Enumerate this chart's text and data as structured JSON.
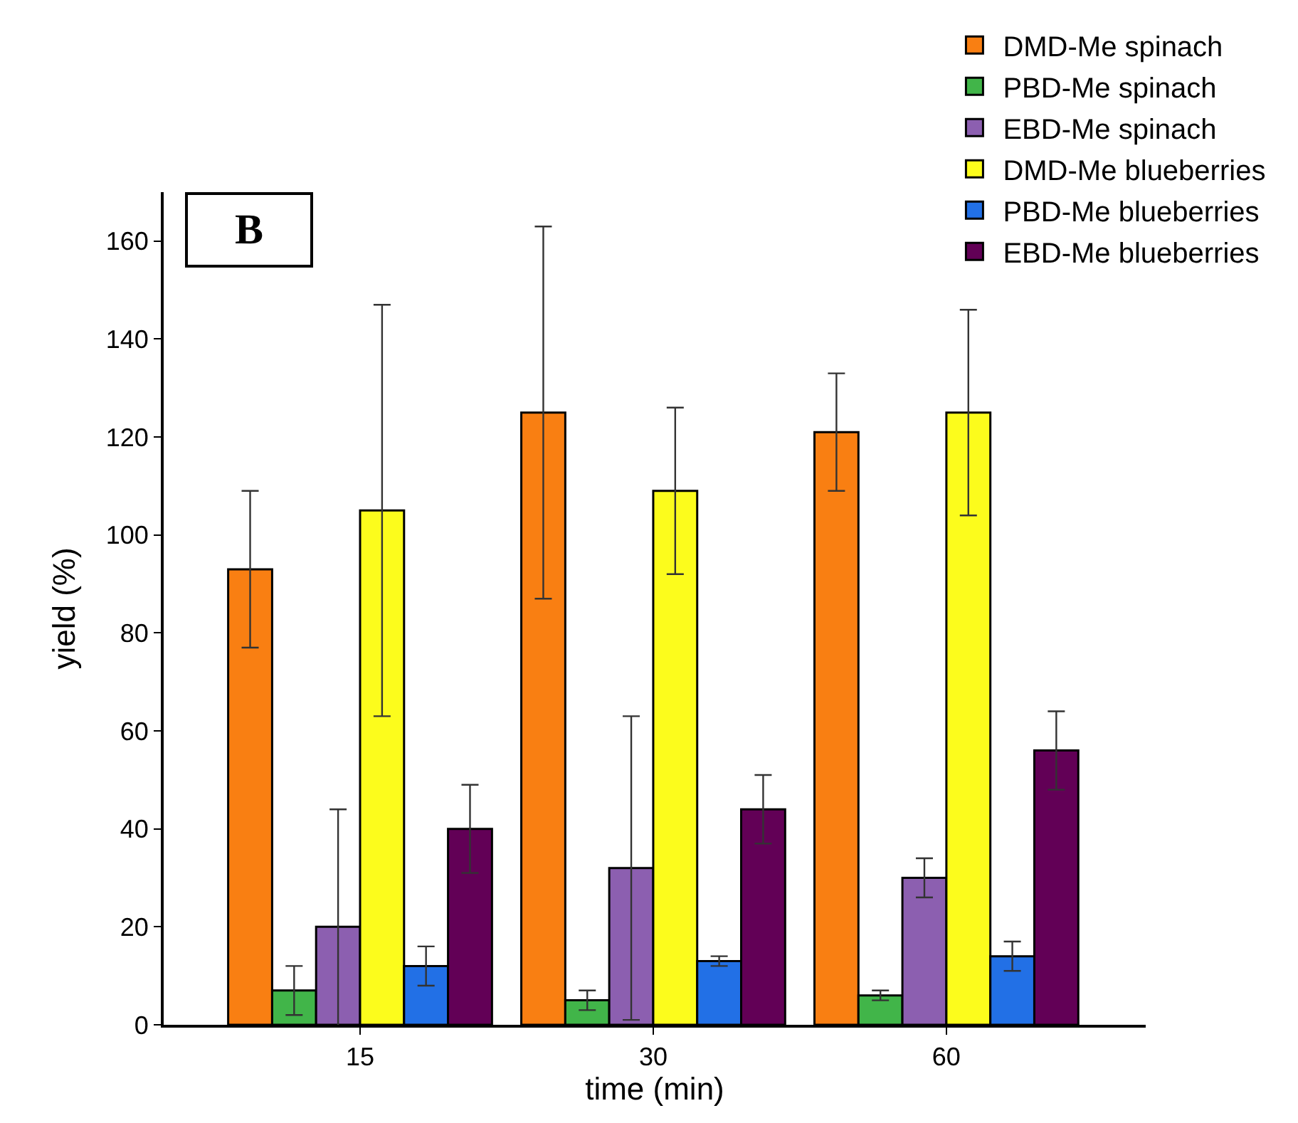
{
  "chart_data": {
    "type": "bar",
    "xlabel": "time (min)",
    "ylabel": "yield (%)",
    "annotations": [
      "B"
    ],
    "categories": [
      "15",
      "30",
      "60"
    ],
    "series": [
      {
        "name": "DMD-Me spinach",
        "color": "#f97f12",
        "values": [
          93,
          125,
          121
        ],
        "errors": [
          16,
          38,
          12
        ]
      },
      {
        "name": "PBD-Me spinach",
        "color": "#41b549",
        "values": [
          7,
          5,
          6
        ],
        "errors": [
          5,
          2,
          1
        ]
      },
      {
        "name": "EBD-Me spinach",
        "color": "#8c5fb0",
        "values": [
          20,
          32,
          30
        ],
        "errors": [
          24,
          31,
          4
        ]
      },
      {
        "name": "DMD-Me blueberries",
        "color": "#fcfc1c",
        "values": [
          105,
          109,
          125
        ],
        "errors": [
          42,
          17,
          21
        ]
      },
      {
        "name": "PBD-Me blueberries",
        "color": "#2270e6",
        "values": [
          12,
          13,
          14
        ],
        "errors": [
          4,
          1,
          3
        ]
      },
      {
        "name": "EBD-Me blueberries",
        "color": "#620056",
        "values": [
          40,
          44,
          56
        ],
        "errors": [
          9,
          7,
          8
        ]
      }
    ],
    "ylim": [
      0,
      170
    ],
    "yticks": [
      0,
      20,
      40,
      60,
      80,
      100,
      120,
      140,
      160
    ],
    "legend": "top right"
  }
}
